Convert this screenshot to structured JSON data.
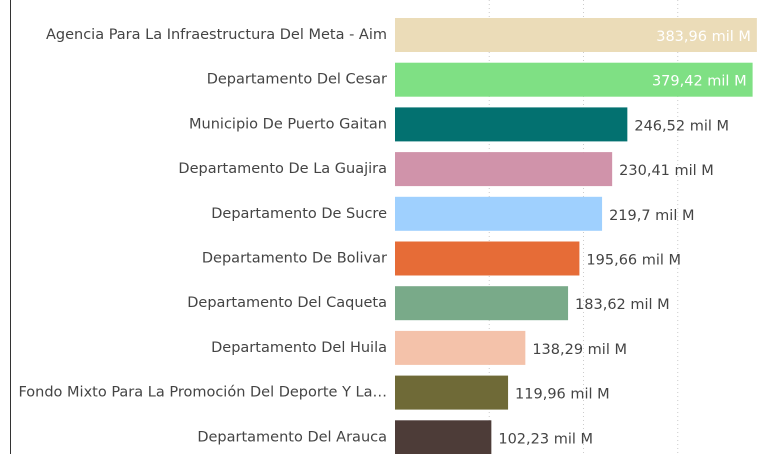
{
  "chart_data": {
    "type": "hbar",
    "categories": [
      "Agencia Para La Infraestructura Del Meta - Aim",
      "Departamento Del Cesar",
      "Municipio De Puerto Gaitan",
      "Departamento De La Guajira",
      "Departamento De Sucre",
      "Departamento De Bolivar",
      "Departamento Del Caqueta",
      "Departamento Del Huila",
      "Fondo Mixto Para La Promoción Del Deporte Y La…",
      "Departamento Del Arauca"
    ],
    "values": [
      383.96,
      379.42,
      246.52,
      230.41,
      219.7,
      195.66,
      183.62,
      138.29,
      119.96,
      102.23
    ],
    "value_labels": [
      "383,96 mil M",
      "379,42 mil M",
      "246,52 mil M",
      "230,41 mil M",
      "219,7 mil M",
      "195,66 mil M",
      "183,62 mil M",
      "138,29 mil M",
      "119,96 mil M",
      "102,23 mil M"
    ],
    "colors": [
      "#ebdcb8",
      "#7fe084",
      "#037170",
      "#d093aa",
      "#9fd0fe",
      "#e66c37",
      "#79aa89",
      "#f4c2aa",
      "#6f6a37",
      "#4d3c38"
    ],
    "xlim": [
      0,
      400
    ],
    "xticks": [
      0,
      100,
      200,
      300
    ],
    "grid": true
  }
}
